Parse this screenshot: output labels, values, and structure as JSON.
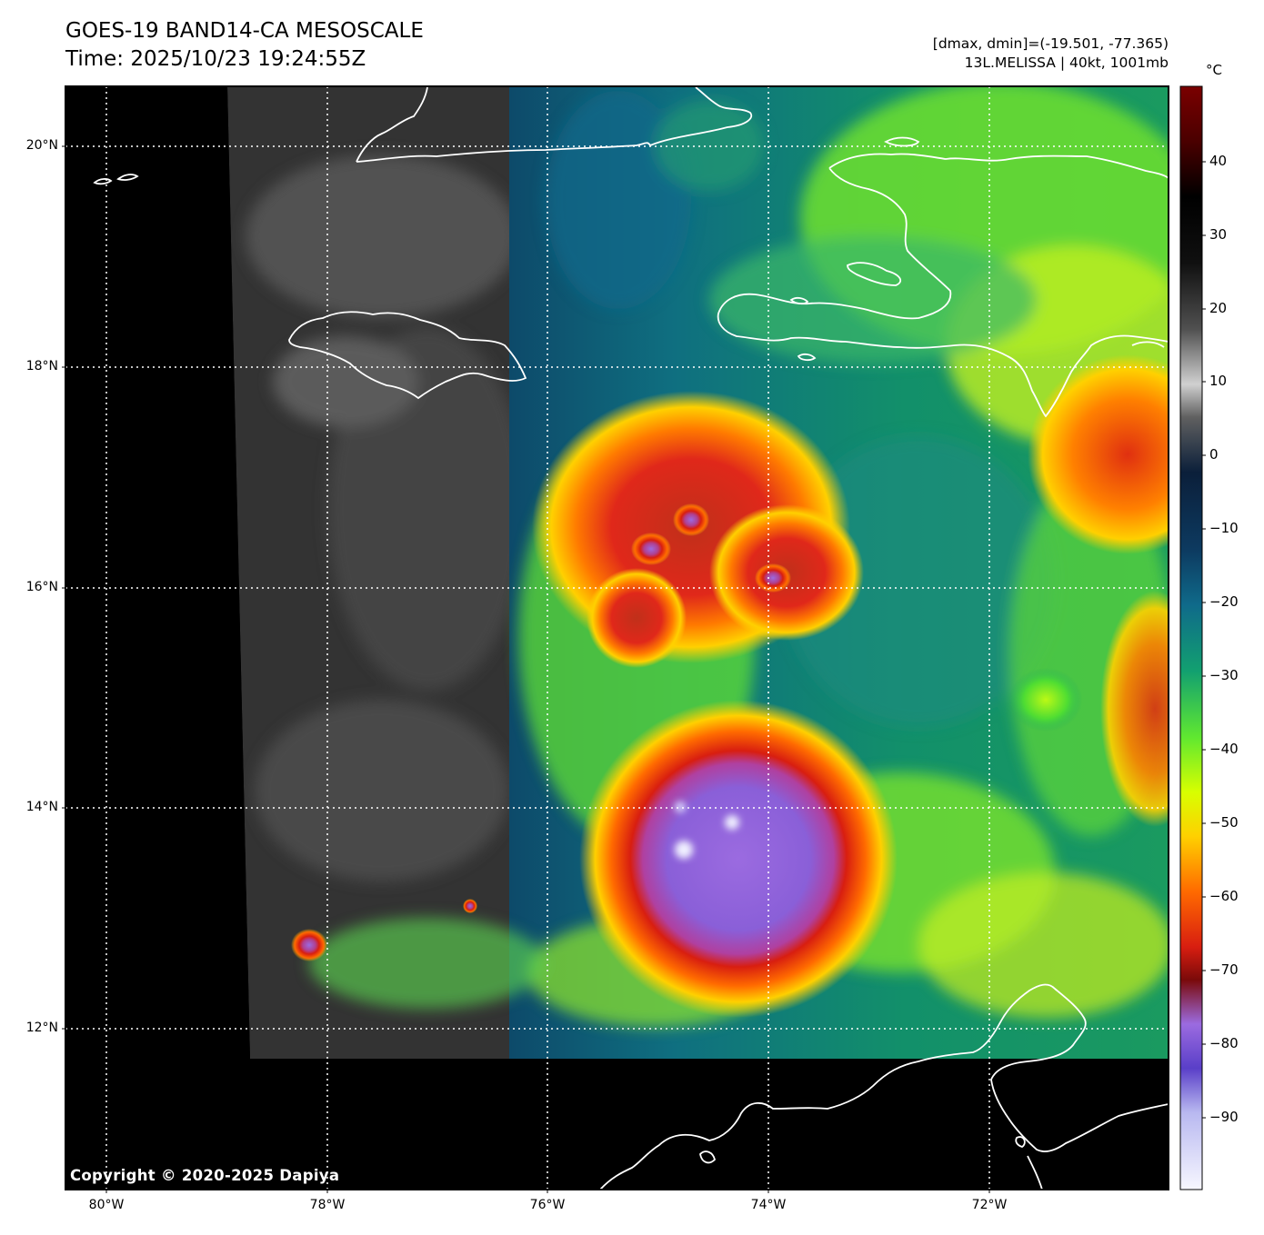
{
  "header": {
    "title_line1": "GOES-19 BAND14-CA MESOSCALE",
    "title_line2": "Time: 2025/10/23 19:24:55Z",
    "range_text": "[dmax, dmin]=(-19.501, -77.365)",
    "storm_text": "13L.MELISSA | 40kt, 1001mb"
  },
  "map": {
    "lat_labels": [
      "20°N",
      "18°N",
      "16°N",
      "14°N",
      "12°N"
    ],
    "lon_labels": [
      "80°W",
      "78°W",
      "76°W",
      "74°W",
      "72°W"
    ],
    "background_color": "#000000",
    "coastline_color": "#ffffff",
    "grid_color": "#ffffff",
    "places_drawn": [
      "Cuba",
      "Jamaica",
      "Haiti",
      "Dominican Republic",
      "Colombia",
      "Venezuela"
    ]
  },
  "colorbar": {
    "unit": "°C",
    "ticks": [
      "40",
      "30",
      "20",
      "10",
      "0",
      "−10",
      "−20",
      "−30",
      "−40",
      "−50",
      "−60",
      "−70",
      "−80",
      "−90"
    ],
    "colors": [
      "#f7f7ff",
      "#b8b8f0",
      "#5a3fc8",
      "#9b6be0",
      "#7a0a0a",
      "#d81e10",
      "#ff6a00",
      "#ffd000",
      "#d8ff00",
      "#60e830",
      "#12a070",
      "#0f6a8a",
      "#0d3a60",
      "#0b1f3a",
      "#606060",
      "#d0d0d0",
      "#303030",
      "#000000",
      "#7a0000"
    ]
  },
  "copyright": "Copyright © 2020-2025 Dapiya"
}
